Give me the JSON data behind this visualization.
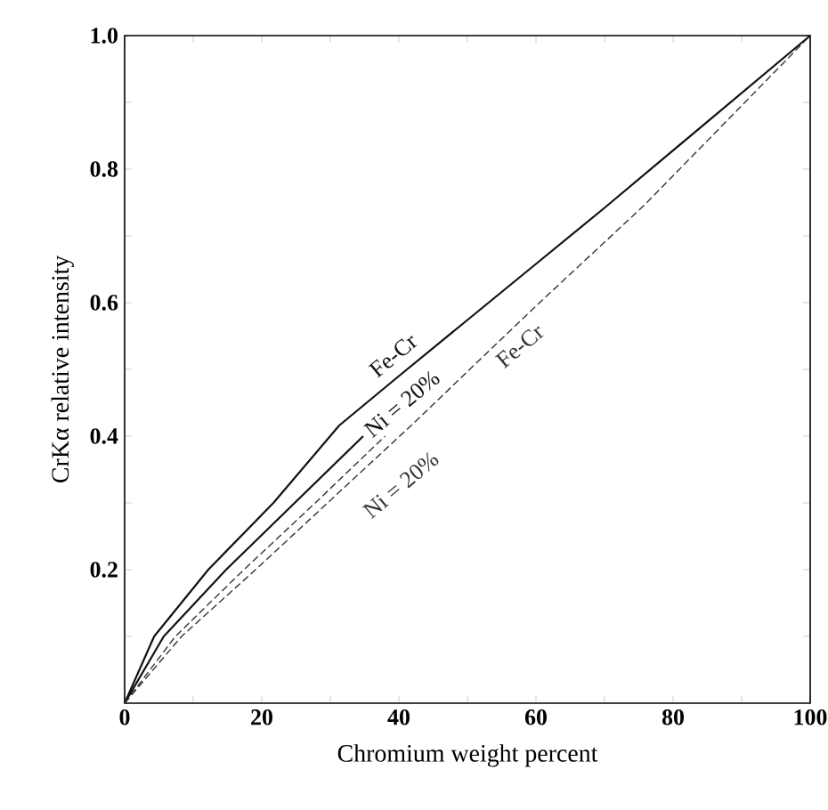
{
  "chart_data": {
    "type": "line",
    "xlabel": "Chromium weight percent",
    "ylabel": "CrKα relative intensity",
    "xlim": [
      0,
      100
    ],
    "ylim": [
      0,
      1.0
    ],
    "xticks": [
      0,
      {
        "value": 10,
        "label": null
      },
      20,
      {
        "value": 30,
        "label": null
      },
      40,
      {
        "value": 50,
        "label": null
      },
      60,
      {
        "value": 70,
        "label": null
      },
      80,
      {
        "value": 90,
        "label": null
      },
      100
    ],
    "yticks": [
      {
        "value": 0.1,
        "label": null
      },
      {
        "value": 0.2,
        "label": "0.2"
      },
      {
        "value": 0.3,
        "label": null
      },
      {
        "value": 0.4,
        "label": "0.4"
      },
      {
        "value": 0.5,
        "label": null
      },
      {
        "value": 0.6,
        "label": "0.6"
      },
      {
        "value": 0.7,
        "label": null
      },
      {
        "value": 0.8,
        "label": "0.8"
      },
      {
        "value": 0.9,
        "label": null
      },
      {
        "value": 1.0,
        "label": "1.0"
      }
    ],
    "grid": false,
    "legend": false,
    "marker": "none",
    "series": [
      {
        "name": "Fe-Cr",
        "color": "#111111",
        "line_style": "solid",
        "x": [
          0,
          4.3,
          12.2,
          21.7,
          31.3,
          40,
          50,
          60,
          70,
          80,
          90,
          100
        ],
        "values": [
          0,
          0.1,
          0.2,
          0.3,
          0.416,
          0.49,
          0.574,
          0.658,
          0.742,
          0.828,
          0.914,
          1.0
        ]
      },
      {
        "name": "Ni = 20%",
        "color": "#111111",
        "line_style": "solid",
        "x": [
          0,
          5.7,
          14.8,
          24.8,
          34.8
        ],
        "values": [
          0,
          0.1,
          0.2,
          0.3,
          0.4
        ]
      },
      {
        "name": "Ni = 20%",
        "color": "#333333",
        "line_style": "dashed",
        "x": [
          0,
          7.4,
          17.4,
          27.8,
          38
        ],
        "values": [
          0,
          0.1,
          0.2,
          0.3,
          0.4
        ]
      },
      {
        "name": "Fe-Cr",
        "color": "#333333",
        "line_style": "dashed",
        "x": [
          0,
          8.3,
          19.1,
          29.6,
          41.8,
          60,
          75.7,
          90,
          100
        ],
        "values": [
          0,
          0.1,
          0.2,
          0.3,
          0.416,
          0.595,
          0.745,
          0.895,
          1.0
        ]
      }
    ]
  }
}
